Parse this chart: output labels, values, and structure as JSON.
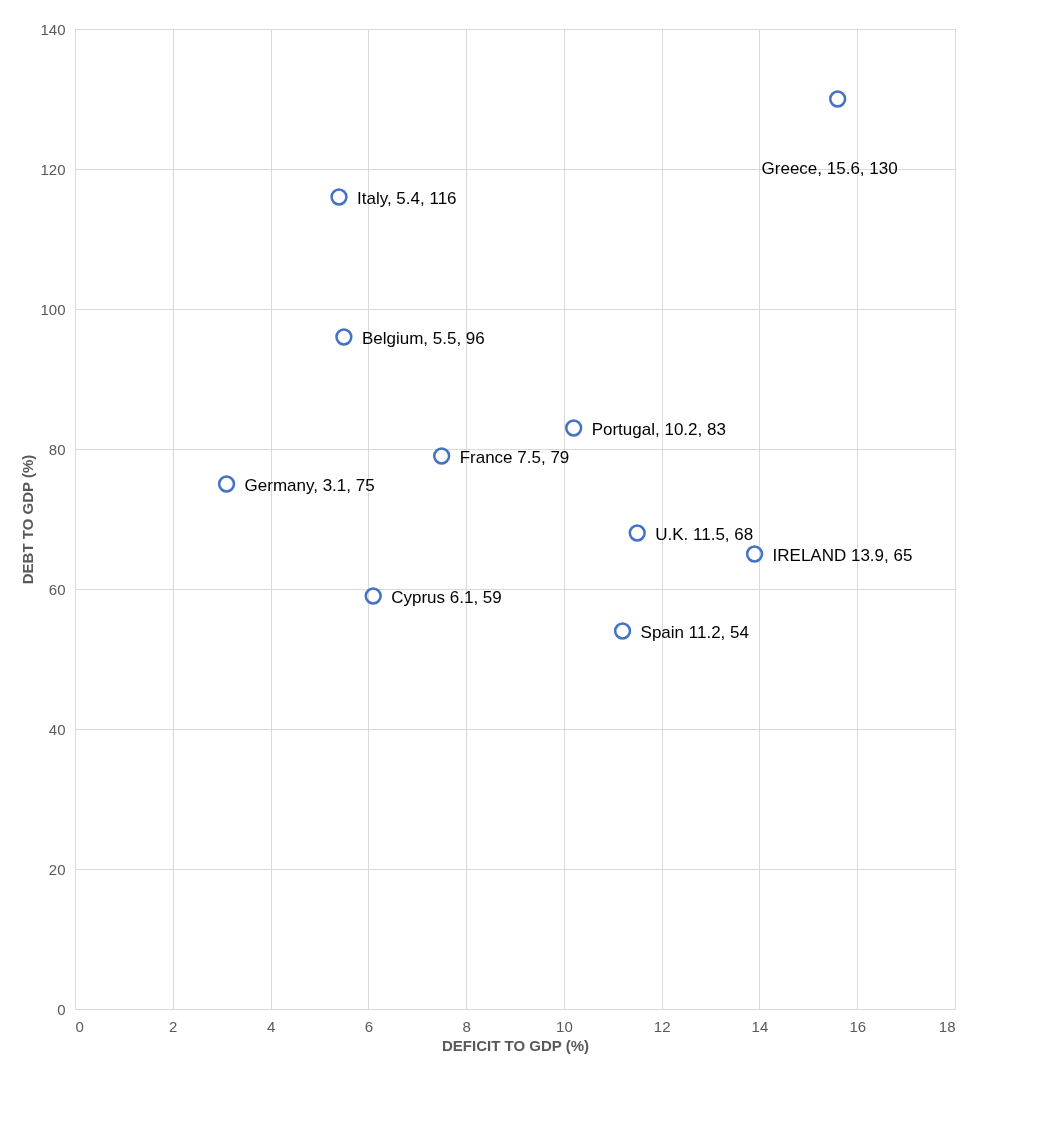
{
  "chart_data": {
    "type": "scatter",
    "xlabel": "DEFICIT TO GDP (%)",
    "ylabel": "DEBT TO GDP (%)",
    "x": [
      5.4,
      15.6,
      5.5,
      7.5,
      10.2,
      3.1,
      11.5,
      13.9,
      6.1,
      11.2
    ],
    "series": [
      {
        "color": "#4472c4",
        "values": [
          116,
          130,
          96,
          79,
          83,
          75,
          68,
          65,
          59,
          54
        ],
        "value_labels": [
          "Italy, 5.4, 116",
          "Greece, 15.6, 130",
          "Belgium, 5.5, 96",
          "France 7.5, 79",
          "Portugal, 10.2, 83",
          "Germany, 3.1, 75",
          "U.K. 11.5, 68",
          "IRELAND 13.9, 65",
          "Cyprus 6.1, 59",
          "Spain 11.2, 54"
        ]
      }
    ],
    "xlim": [
      0,
      18
    ],
    "xticks": [
      0,
      2,
      4,
      6,
      8,
      10,
      12,
      14,
      16,
      18
    ],
    "ylim": [
      0,
      140
    ],
    "yticks": [
      0,
      20,
      40,
      60,
      80,
      100,
      120,
      140
    ],
    "grid": true,
    "marker": "circle"
  }
}
